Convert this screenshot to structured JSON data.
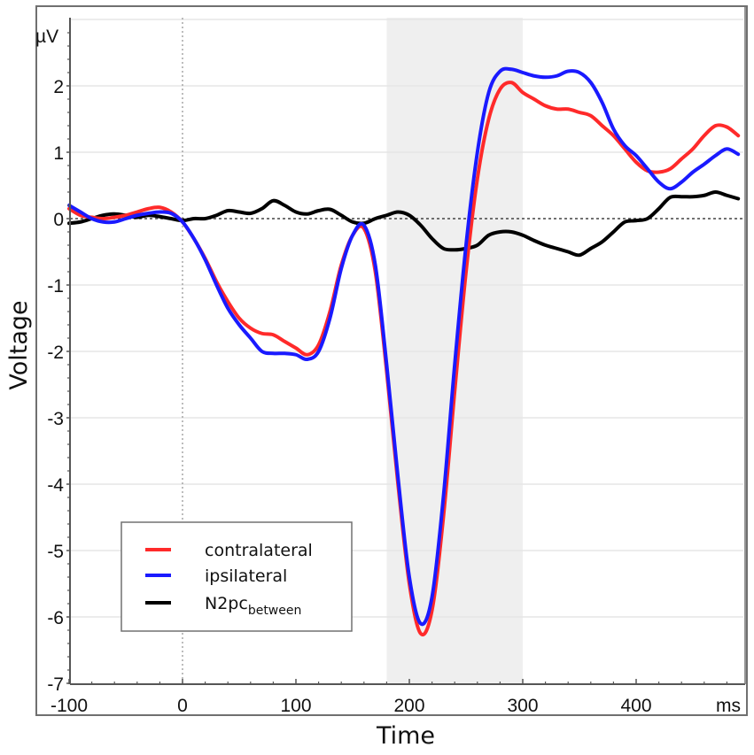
{
  "chart_data": {
    "type": "line",
    "title": "",
    "xlabel": "Time",
    "ylabel": "Voltage",
    "x_unit": "ms",
    "y_unit": "µV",
    "xlim": [
      -100,
      496
    ],
    "ylim": [
      -7,
      3
    ],
    "x_ticks": [
      -100,
      0,
      100,
      200,
      300,
      400
    ],
    "x_tick_labels": [
      "-100",
      "0",
      "100",
      "200",
      "300",
      "400"
    ],
    "y_ticks": [
      -7,
      -6,
      -5,
      -4,
      -3,
      -2,
      -1,
      0,
      1,
      2
    ],
    "y_tick_labels": [
      "-7",
      "-6",
      "-5",
      "-4",
      "-3",
      "-2",
      "-1",
      "0",
      "1",
      "2"
    ],
    "grid": {
      "horizontal": true,
      "vertical": false,
      "color": "#e6e6e6"
    },
    "zero_line": {
      "style": "dotted",
      "color": "#444444"
    },
    "stimulus_line": {
      "x": 0,
      "style": "dotted",
      "color": "#999999"
    },
    "shaded_window": {
      "x_start": 180,
      "x_end": 300,
      "color": "#efefef"
    },
    "legend": {
      "position": "lower-left",
      "entries": [
        {
          "label": "contralateral",
          "color": "#ff2a2a"
        },
        {
          "label": "ipsilateral",
          "color": "#1a1aff"
        },
        {
          "label": "N2pc",
          "subscript": "between",
          "color": "#000000"
        }
      ]
    },
    "x": [
      -100,
      -90,
      -80,
      -70,
      -60,
      -50,
      -40,
      -30,
      -20,
      -10,
      0,
      10,
      20,
      30,
      40,
      50,
      60,
      70,
      80,
      90,
      100,
      110,
      120,
      130,
      140,
      150,
      160,
      170,
      180,
      190,
      200,
      210,
      220,
      230,
      240,
      250,
      260,
      270,
      280,
      290,
      300,
      310,
      320,
      330,
      340,
      350,
      360,
      370,
      380,
      390,
      400,
      410,
      420,
      430,
      440,
      450,
      460,
      470,
      480,
      490
    ],
    "series": [
      {
        "name": "contralateral",
        "color": "#ff2a2a",
        "values": [
          0.15,
          0.05,
          0.02,
          0.0,
          0.02,
          0.05,
          0.1,
          0.15,
          0.17,
          0.1,
          -0.05,
          -0.3,
          -0.6,
          -0.95,
          -1.25,
          -1.5,
          -1.65,
          -1.73,
          -1.75,
          -1.85,
          -1.95,
          -2.05,
          -1.9,
          -1.4,
          -0.7,
          -0.25,
          -0.15,
          -0.8,
          -2.3,
          -4.0,
          -5.5,
          -6.25,
          -5.9,
          -4.5,
          -2.6,
          -0.8,
          0.6,
          1.5,
          1.95,
          2.05,
          1.9,
          1.8,
          1.7,
          1.65,
          1.65,
          1.6,
          1.55,
          1.4,
          1.25,
          1.05,
          0.85,
          0.72,
          0.7,
          0.75,
          0.9,
          1.05,
          1.25,
          1.4,
          1.38,
          1.25
        ]
      },
      {
        "name": "ipsilateral",
        "color": "#1a1aff",
        "values": [
          0.2,
          0.1,
          0.0,
          -0.05,
          -0.05,
          0.0,
          0.05,
          0.08,
          0.1,
          0.08,
          -0.05,
          -0.3,
          -0.62,
          -1.0,
          -1.35,
          -1.6,
          -1.8,
          -2.0,
          -2.03,
          -2.03,
          -2.05,
          -2.12,
          -2.0,
          -1.5,
          -0.75,
          -0.25,
          -0.1,
          -0.7,
          -2.2,
          -3.9,
          -5.4,
          -6.1,
          -5.7,
          -4.2,
          -2.2,
          -0.4,
          1.0,
          1.9,
          2.22,
          2.25,
          2.2,
          2.15,
          2.13,
          2.15,
          2.22,
          2.2,
          2.05,
          1.75,
          1.35,
          1.1,
          0.95,
          0.75,
          0.55,
          0.45,
          0.55,
          0.7,
          0.82,
          0.95,
          1.05,
          0.97
        ]
      },
      {
        "name": "N2pc_between",
        "color": "#000000",
        "values": [
          -0.07,
          -0.05,
          0.0,
          0.05,
          0.07,
          0.05,
          0.02,
          0.05,
          0.03,
          0.0,
          -0.03,
          0.0,
          0.0,
          0.05,
          0.12,
          0.1,
          0.08,
          0.15,
          0.27,
          0.2,
          0.1,
          0.07,
          0.12,
          0.14,
          0.05,
          -0.05,
          -0.07,
          0.0,
          0.05,
          0.1,
          0.05,
          -0.1,
          -0.3,
          -0.45,
          -0.47,
          -0.45,
          -0.4,
          -0.25,
          -0.2,
          -0.2,
          -0.25,
          -0.33,
          -0.4,
          -0.45,
          -0.5,
          -0.55,
          -0.45,
          -0.35,
          -0.2,
          -0.05,
          -0.03,
          0.0,
          0.15,
          0.32,
          0.33,
          0.33,
          0.35,
          0.4,
          0.35,
          0.3
        ]
      }
    ]
  },
  "labels": {
    "y_unit": "µV",
    "x_unit": "ms",
    "xlabel": "Time",
    "ylabel": "Voltage",
    "legend_contra": "contralateral",
    "legend_ipsi": "ipsilateral",
    "legend_n2pc": "N2pc",
    "legend_n2pc_sub": "between"
  }
}
